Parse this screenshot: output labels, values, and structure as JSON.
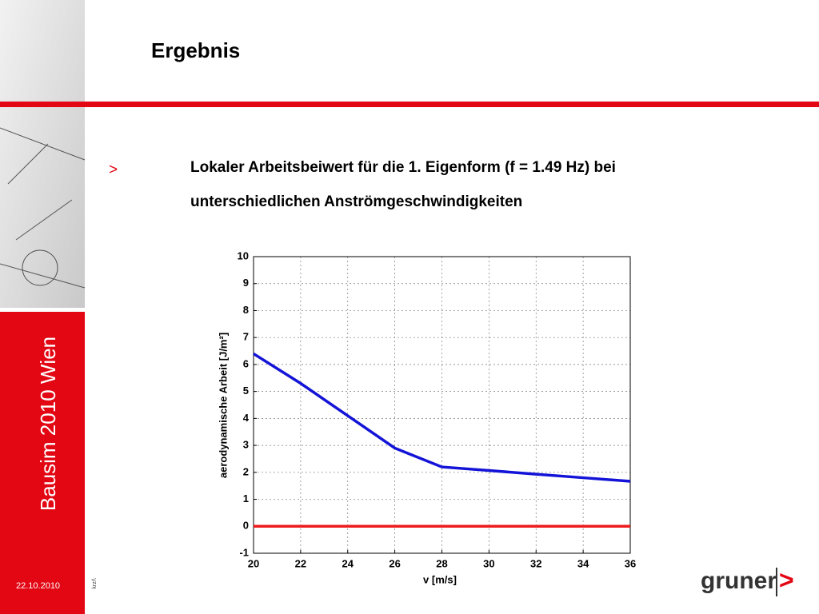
{
  "slide": {
    "title": "Ergebnis",
    "bullet": ">",
    "text_lines": [
      "Lokaler Arbeitsbeiwert für die 1. Eigenform (f = 1.49 Hz) bei",
      "unterschiedlichen Anströmgeschwindigkeiten"
    ],
    "sidebar": "Bausim 2010 Wien",
    "date": "22.10.2010",
    "footer_code": "krz/\\",
    "logo": "gruner",
    "logo_mark": ">"
  },
  "chart_data": {
    "type": "line",
    "x_label": "v [m/s]",
    "y_label": "aerodynamische Arbeit [J/m²]",
    "x": [
      20,
      22,
      24,
      26,
      28,
      30,
      32,
      34,
      36
    ],
    "series": [
      {
        "color": "#1414d8",
        "values": [
          6.4,
          5.3,
          4.1,
          2.9,
          2.2,
          2.07,
          1.93,
          1.8,
          1.67
        ]
      },
      {
        "color": "#ee1c1c",
        "values": [
          0,
          0,
          0,
          0,
          0,
          0,
          0,
          0,
          0
        ]
      }
    ],
    "xlim": [
      20,
      36
    ],
    "xticks": [
      20,
      22,
      24,
      26,
      28,
      30,
      32,
      34,
      36
    ],
    "ylim": [
      -1,
      10
    ],
    "yticks": [
      -1,
      0,
      1,
      2,
      3,
      4,
      5,
      6,
      7,
      8,
      9,
      10
    ],
    "grid": true
  }
}
